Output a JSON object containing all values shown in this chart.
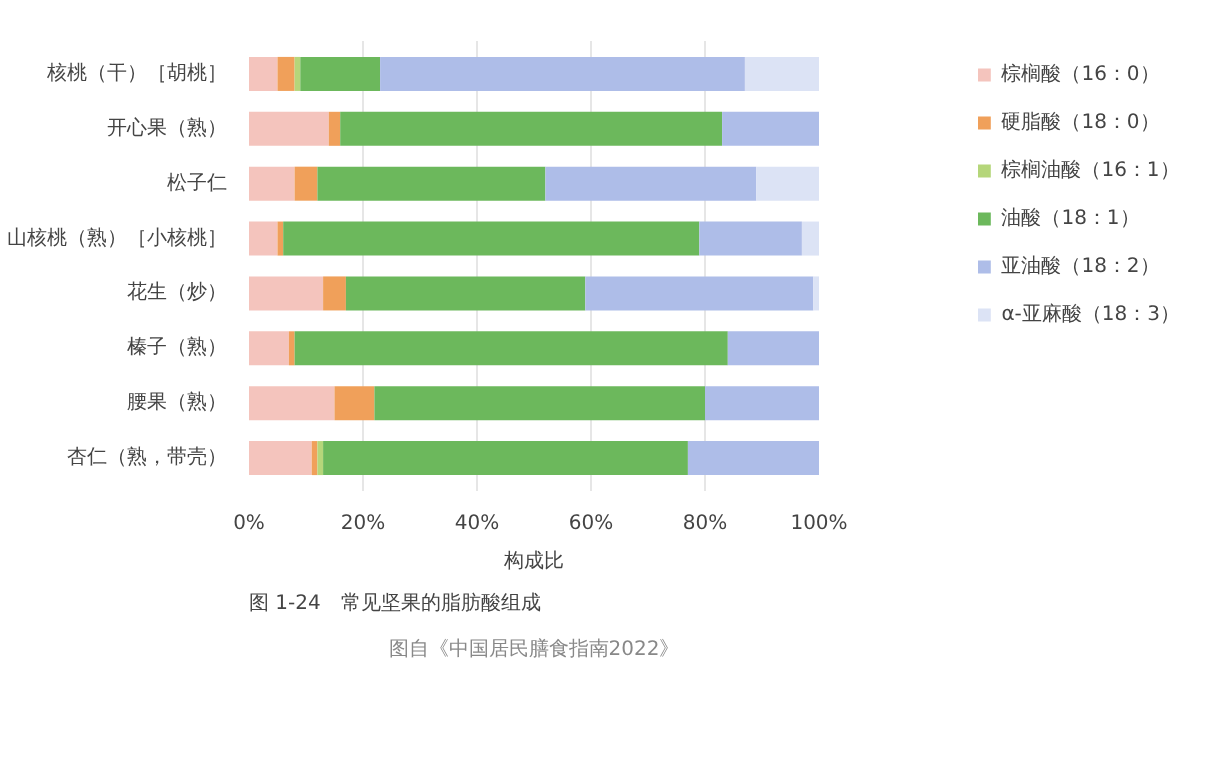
{
  "chart_data": {
    "type": "bar",
    "orientation": "horizontal",
    "stacked": true,
    "title": "图 1-24　常见坚果的脂肪酸组成",
    "xlabel": "构成比",
    "annotations": [
      "图自《中国居民膳食指南2022》"
    ],
    "categories": [
      "核桃（干）［胡桃］",
      "开心果（熟）",
      "松子仁",
      "山核桃（熟）［小核桃］",
      "花生（炒）",
      "榛子（熟）",
      "腰果（熟）",
      "杏仁（熟，带壳）"
    ],
    "series": [
      {
        "name": "棕榈酸（16：0）",
        "color": "#f4c4bd",
        "values": [
          5,
          14,
          8,
          5,
          13,
          7,
          15,
          11
        ]
      },
      {
        "name": "硬脂酸（18：0）",
        "color": "#f0a05a",
        "values": [
          3,
          2,
          4,
          1,
          4,
          1,
          7,
          1
        ]
      },
      {
        "name": "棕榈油酸（16：1）",
        "color": "#b5d67a",
        "values": [
          1,
          0,
          0,
          0,
          0,
          0,
          0,
          1
        ]
      },
      {
        "name": "油酸（18：1）",
        "color": "#6cb85c",
        "values": [
          14,
          67,
          40,
          73,
          42,
          76,
          58,
          64
        ]
      },
      {
        "name": "亚油酸（18：2）",
        "color": "#aebde8",
        "values": [
          64,
          17,
          37,
          18,
          40,
          16,
          20,
          23
        ]
      },
      {
        "name": "α-亚麻酸（18：3）",
        "color": "#dce3f5",
        "values": [
          13,
          0,
          11,
          3,
          1,
          0,
          0,
          0
        ]
      }
    ],
    "xlim": [
      0,
      100
    ],
    "xticks": [
      {
        "value": 0,
        "label": "0%"
      },
      {
        "value": 20,
        "label": "20%"
      },
      {
        "value": 40,
        "label": "40%"
      },
      {
        "value": 60,
        "label": "60%"
      },
      {
        "value": 80,
        "label": "80%"
      },
      {
        "value": 100,
        "label": "100%"
      }
    ],
    "grid": "x",
    "legend": "right"
  }
}
